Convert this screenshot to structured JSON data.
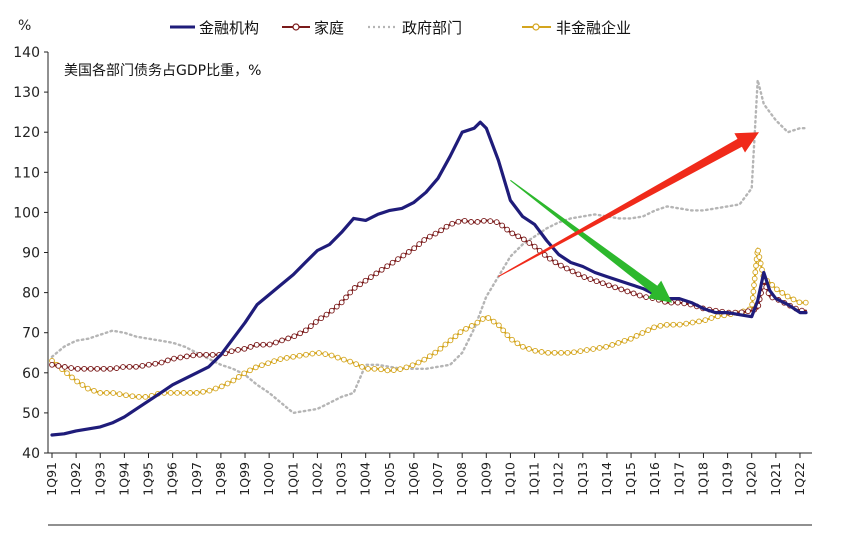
{
  "chart_data": {
    "type": "line",
    "title": "美国各部门债务占GDP比重，%",
    "ylabel": "%",
    "xlabel": "",
    "ylim": [
      40,
      140
    ],
    "yticks": [
      40,
      50,
      60,
      70,
      80,
      90,
      100,
      110,
      120,
      130,
      140
    ],
    "x_range": [
      1991.0,
      2022.25
    ],
    "xtick_labels": [
      "1Q91",
      "1Q92",
      "1Q93",
      "1Q94",
      "1Q95",
      "1Q96",
      "1Q97",
      "1Q98",
      "1Q99",
      "1Q00",
      "1Q01",
      "1Q02",
      "1Q03",
      "1Q04",
      "1Q05",
      "1Q06",
      "1Q07",
      "1Q08",
      "1Q09",
      "1Q10",
      "1Q11",
      "1Q12",
      "1Q13",
      "1Q14",
      "1Q15",
      "1Q16",
      "1Q17",
      "1Q18",
      "1Q19",
      "1Q20",
      "1Q21",
      "1Q22"
    ],
    "grid": false,
    "legend_position": "top",
    "series": [
      {
        "name": "金融机构",
        "color": "#1f1c7a",
        "style": "solid-thick",
        "points": [
          [
            1991.0,
            44.5
          ],
          [
            1991.5,
            44.8
          ],
          [
            1992.0,
            45.5
          ],
          [
            1992.5,
            46.0
          ],
          [
            1993.0,
            46.5
          ],
          [
            1993.5,
            47.5
          ],
          [
            1994.0,
            49.0
          ],
          [
            1994.5,
            51.0
          ],
          [
            1995.0,
            53.0
          ],
          [
            1995.5,
            55.0
          ],
          [
            1996.0,
            57.0
          ],
          [
            1996.5,
            58.5
          ],
          [
            1997.0,
            60.0
          ],
          [
            1997.5,
            61.5
          ],
          [
            1998.0,
            64.5
          ],
          [
            1998.5,
            68.5
          ],
          [
            1999.0,
            72.5
          ],
          [
            1999.5,
            77.0
          ],
          [
            2000.0,
            79.5
          ],
          [
            2000.5,
            82.0
          ],
          [
            2001.0,
            84.5
          ],
          [
            2001.5,
            87.5
          ],
          [
            2002.0,
            90.5
          ],
          [
            2002.5,
            92.0
          ],
          [
            2003.0,
            95.0
          ],
          [
            2003.5,
            98.5
          ],
          [
            2004.0,
            98.0
          ],
          [
            2004.5,
            99.5
          ],
          [
            2005.0,
            100.5
          ],
          [
            2005.5,
            101.0
          ],
          [
            2006.0,
            102.5
          ],
          [
            2006.5,
            105.0
          ],
          [
            2007.0,
            108.5
          ],
          [
            2007.5,
            114.0
          ],
          [
            2008.0,
            120.0
          ],
          [
            2008.5,
            121.0
          ],
          [
            2008.75,
            122.5
          ],
          [
            2009.0,
            121.0
          ],
          [
            2009.5,
            113.0
          ],
          [
            2010.0,
            103.0
          ],
          [
            2010.5,
            99.0
          ],
          [
            2011.0,
            97.0
          ],
          [
            2011.5,
            93.0
          ],
          [
            2012.0,
            89.5
          ],
          [
            2012.5,
            87.5
          ],
          [
            2013.0,
            86.5
          ],
          [
            2013.5,
            85.0
          ],
          [
            2014.0,
            84.0
          ],
          [
            2014.5,
            83.0
          ],
          [
            2015.0,
            82.0
          ],
          [
            2015.5,
            81.0
          ],
          [
            2016.0,
            79.5
          ],
          [
            2016.5,
            78.5
          ],
          [
            2017.0,
            78.5
          ],
          [
            2017.5,
            77.5
          ],
          [
            2018.0,
            76.0
          ],
          [
            2018.5,
            75.0
          ],
          [
            2019.0,
            75.0
          ],
          [
            2019.5,
            74.5
          ],
          [
            2020.0,
            74.0
          ],
          [
            2020.25,
            78.0
          ],
          [
            2020.5,
            85.0
          ],
          [
            2020.75,
            80.5
          ],
          [
            2021.0,
            78.5
          ],
          [
            2021.5,
            77.0
          ],
          [
            2022.0,
            75.0
          ],
          [
            2022.25,
            75.0
          ]
        ]
      },
      {
        "name": "家庭",
        "color": "#7a1a1a",
        "style": "line-open-circles",
        "points": [
          [
            1991.0,
            62.0
          ],
          [
            1991.5,
            61.5
          ],
          [
            1992.0,
            61.0
          ],
          [
            1992.5,
            61.0
          ],
          [
            1993.0,
            61.0
          ],
          [
            1993.5,
            61.0
          ],
          [
            1994.0,
            61.5
          ],
          [
            1994.5,
            61.5
          ],
          [
            1995.0,
            62.0
          ],
          [
            1995.5,
            62.5
          ],
          [
            1996.0,
            63.5
          ],
          [
            1996.5,
            64.0
          ],
          [
            1997.0,
            64.5
          ],
          [
            1997.5,
            64.5
          ],
          [
            1998.0,
            64.5
          ],
          [
            1998.5,
            65.5
          ],
          [
            1999.0,
            66.0
          ],
          [
            1999.5,
            67.0
          ],
          [
            2000.0,
            67.0
          ],
          [
            2000.5,
            68.0
          ],
          [
            2001.0,
            69.0
          ],
          [
            2001.5,
            70.5
          ],
          [
            2002.0,
            73.0
          ],
          [
            2002.5,
            75.0
          ],
          [
            2003.0,
            77.5
          ],
          [
            2003.5,
            81.0
          ],
          [
            2004.0,
            83.0
          ],
          [
            2004.5,
            85.0
          ],
          [
            2005.0,
            87.0
          ],
          [
            2005.5,
            89.0
          ],
          [
            2006.0,
            91.0
          ],
          [
            2006.5,
            93.5
          ],
          [
            2007.0,
            95.0
          ],
          [
            2007.5,
            97.0
          ],
          [
            2008.0,
            98.0
          ],
          [
            2008.5,
            97.5
          ],
          [
            2009.0,
            98.0
          ],
          [
            2009.5,
            97.5
          ],
          [
            2010.0,
            95.0
          ],
          [
            2010.5,
            93.5
          ],
          [
            2011.0,
            91.5
          ],
          [
            2011.5,
            89.0
          ],
          [
            2012.0,
            87.0
          ],
          [
            2012.5,
            85.5
          ],
          [
            2013.0,
            84.0
          ],
          [
            2013.5,
            83.0
          ],
          [
            2014.0,
            82.0
          ],
          [
            2014.5,
            81.0
          ],
          [
            2015.0,
            80.0
          ],
          [
            2015.5,
            79.0
          ],
          [
            2016.0,
            78.5
          ],
          [
            2016.5,
            77.5
          ],
          [
            2017.0,
            77.5
          ],
          [
            2017.5,
            77.0
          ],
          [
            2018.0,
            76.0
          ],
          [
            2018.5,
            75.5
          ],
          [
            2019.0,
            75.0
          ],
          [
            2019.5,
            75.0
          ],
          [
            2020.0,
            75.5
          ],
          [
            2020.25,
            76.0
          ],
          [
            2020.5,
            83.0
          ],
          [
            2020.75,
            79.0
          ],
          [
            2021.0,
            78.5
          ],
          [
            2021.5,
            77.0
          ],
          [
            2022.0,
            75.5
          ],
          [
            2022.25,
            75.5
          ]
        ]
      },
      {
        "name": "政府部门",
        "color": "#b5b5b5",
        "style": "dotted",
        "points": [
          [
            1991.0,
            64.0
          ],
          [
            1991.5,
            66.5
          ],
          [
            1992.0,
            68.0
          ],
          [
            1992.5,
            68.5
          ],
          [
            1993.0,
            69.5
          ],
          [
            1993.5,
            70.5
          ],
          [
            1994.0,
            70.0
          ],
          [
            1994.5,
            69.0
          ],
          [
            1995.0,
            68.5
          ],
          [
            1995.5,
            68.0
          ],
          [
            1996.0,
            67.5
          ],
          [
            1996.5,
            66.5
          ],
          [
            1997.0,
            65.0
          ],
          [
            1997.5,
            63.5
          ],
          [
            1998.0,
            62.0
          ],
          [
            1998.5,
            61.0
          ],
          [
            1999.0,
            59.5
          ],
          [
            1999.5,
            57.0
          ],
          [
            2000.0,
            55.0
          ],
          [
            2000.5,
            52.5
          ],
          [
            2001.0,
            50.0
          ],
          [
            2001.5,
            50.5
          ],
          [
            2002.0,
            51.0
          ],
          [
            2002.5,
            52.5
          ],
          [
            2003.0,
            54.0
          ],
          [
            2003.5,
            55.0
          ],
          [
            2004.0,
            62.0
          ],
          [
            2004.5,
            62.0
          ],
          [
            2005.0,
            61.5
          ],
          [
            2005.5,
            61.0
          ],
          [
            2006.0,
            61.0
          ],
          [
            2006.5,
            61.0
          ],
          [
            2007.0,
            61.5
          ],
          [
            2007.5,
            62.0
          ],
          [
            2008.0,
            65.0
          ],
          [
            2008.5,
            71.0
          ],
          [
            2009.0,
            79.0
          ],
          [
            2009.5,
            84.0
          ],
          [
            2010.0,
            89.0
          ],
          [
            2010.5,
            92.0
          ],
          [
            2011.0,
            94.0
          ],
          [
            2011.5,
            96.0
          ],
          [
            2012.0,
            97.5
          ],
          [
            2012.5,
            98.5
          ],
          [
            2013.0,
            99.0
          ],
          [
            2013.5,
            99.5
          ],
          [
            2014.0,
            99.0
          ],
          [
            2014.5,
            98.5
          ],
          [
            2015.0,
            98.5
          ],
          [
            2015.5,
            99.0
          ],
          [
            2016.0,
            100.5
          ],
          [
            2016.5,
            101.5
          ],
          [
            2017.0,
            101.0
          ],
          [
            2017.5,
            100.5
          ],
          [
            2018.0,
            100.5
          ],
          [
            2018.5,
            101.0
          ],
          [
            2019.0,
            101.5
          ],
          [
            2019.5,
            102.0
          ],
          [
            2020.0,
            106.0
          ],
          [
            2020.25,
            133.0
          ],
          [
            2020.5,
            127.0
          ],
          [
            2020.75,
            125.0
          ],
          [
            2021.0,
            123.0
          ],
          [
            2021.5,
            120.0
          ],
          [
            2022.0,
            121.0
          ],
          [
            2022.25,
            121.0
          ]
        ]
      },
      {
        "name": "非金融企业",
        "color": "#d4a51e",
        "style": "line-open-circles",
        "points": [
          [
            1991.0,
            63.0
          ],
          [
            1991.5,
            60.5
          ],
          [
            1992.0,
            58.0
          ],
          [
            1992.5,
            56.0
          ],
          [
            1993.0,
            55.0
          ],
          [
            1993.5,
            55.0
          ],
          [
            1994.0,
            54.5
          ],
          [
            1994.5,
            54.0
          ],
          [
            1995.0,
            54.0
          ],
          [
            1995.5,
            55.0
          ],
          [
            1996.0,
            55.0
          ],
          [
            1996.5,
            55.0
          ],
          [
            1997.0,
            55.0
          ],
          [
            1997.5,
            55.5
          ],
          [
            1998.0,
            56.5
          ],
          [
            1998.5,
            58.0
          ],
          [
            1999.0,
            60.0
          ],
          [
            1999.5,
            61.5
          ],
          [
            2000.0,
            62.5
          ],
          [
            2000.5,
            63.5
          ],
          [
            2001.0,
            64.0
          ],
          [
            2001.5,
            64.5
          ],
          [
            2002.0,
            65.0
          ],
          [
            2002.5,
            64.5
          ],
          [
            2003.0,
            63.5
          ],
          [
            2003.5,
            62.5
          ],
          [
            2004.0,
            61.0
          ],
          [
            2004.5,
            61.0
          ],
          [
            2005.0,
            60.5
          ],
          [
            2005.5,
            61.0
          ],
          [
            2006.0,
            62.0
          ],
          [
            2006.5,
            63.5
          ],
          [
            2007.0,
            65.5
          ],
          [
            2007.5,
            68.0
          ],
          [
            2008.0,
            70.5
          ],
          [
            2008.5,
            72.0
          ],
          [
            2009.0,
            74.0
          ],
          [
            2009.5,
            72.0
          ],
          [
            2010.0,
            68.5
          ],
          [
            2010.5,
            66.5
          ],
          [
            2011.0,
            65.5
          ],
          [
            2011.5,
            65.0
          ],
          [
            2012.0,
            65.0
          ],
          [
            2012.5,
            65.0
          ],
          [
            2013.0,
            65.5
          ],
          [
            2013.5,
            66.0
          ],
          [
            2014.0,
            66.5
          ],
          [
            2014.5,
            67.5
          ],
          [
            2015.0,
            68.5
          ],
          [
            2015.5,
            70.0
          ],
          [
            2016.0,
            71.5
          ],
          [
            2016.5,
            72.0
          ],
          [
            2017.0,
            72.0
          ],
          [
            2017.5,
            72.5
          ],
          [
            2018.0,
            73.0
          ],
          [
            2018.5,
            74.0
          ],
          [
            2019.0,
            74.5
          ],
          [
            2019.5,
            75.0
          ],
          [
            2020.0,
            76.0
          ],
          [
            2020.25,
            91.0
          ],
          [
            2020.5,
            83.5
          ],
          [
            2020.75,
            82.5
          ],
          [
            2021.0,
            81.0
          ],
          [
            2021.5,
            79.0
          ],
          [
            2022.0,
            77.5
          ],
          [
            2022.25,
            77.5
          ]
        ]
      }
    ],
    "annotations": [
      {
        "type": "arrow",
        "color": "#2db82d",
        "from": [
          2010.0,
          108.0
        ],
        "to": [
          2016.7,
          77.5
        ]
      },
      {
        "type": "arrow",
        "color": "#f02a1a",
        "from": [
          2009.5,
          84.0
        ],
        "to": [
          2020.3,
          120.0
        ]
      }
    ]
  }
}
